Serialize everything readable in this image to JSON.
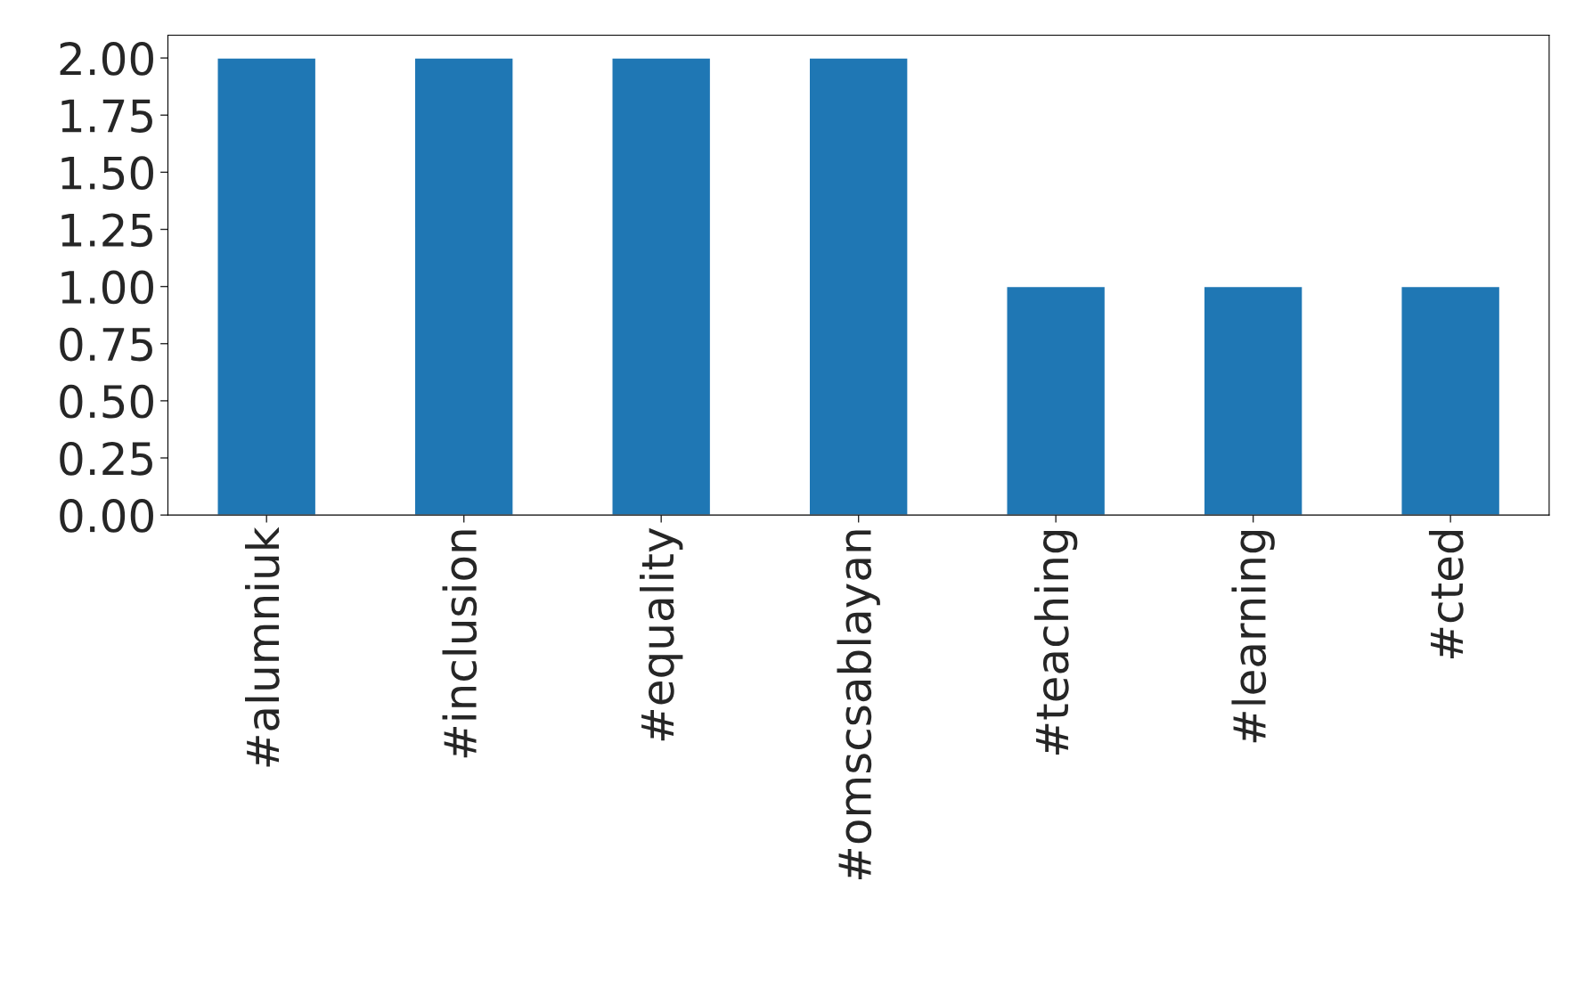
{
  "chart_data": {
    "type": "bar",
    "categories": [
      "#alumniuk",
      "#inclusion",
      "#equality",
      "#omscsablayan",
      "#teaching",
      "#learning",
      "#cted"
    ],
    "values": [
      2,
      2,
      2,
      2,
      1,
      1,
      1
    ],
    "color": "#1f77b4",
    "ylim": [
      0,
      2.1
    ],
    "yticks": [
      {
        "value": 0,
        "label": "0.00"
      },
      {
        "value": 0.25,
        "label": "0.25"
      },
      {
        "value": 0.5,
        "label": "0.50"
      },
      {
        "value": 0.75,
        "label": "0.75"
      },
      {
        "value": 1,
        "label": "1.00"
      },
      {
        "value": 1.25,
        "label": "1.25"
      },
      {
        "value": 1.5,
        "label": "1.50"
      },
      {
        "value": 1.75,
        "label": "1.75"
      },
      {
        "value": 2,
        "label": "2.00"
      }
    ],
    "grid": false,
    "legend": false
  }
}
